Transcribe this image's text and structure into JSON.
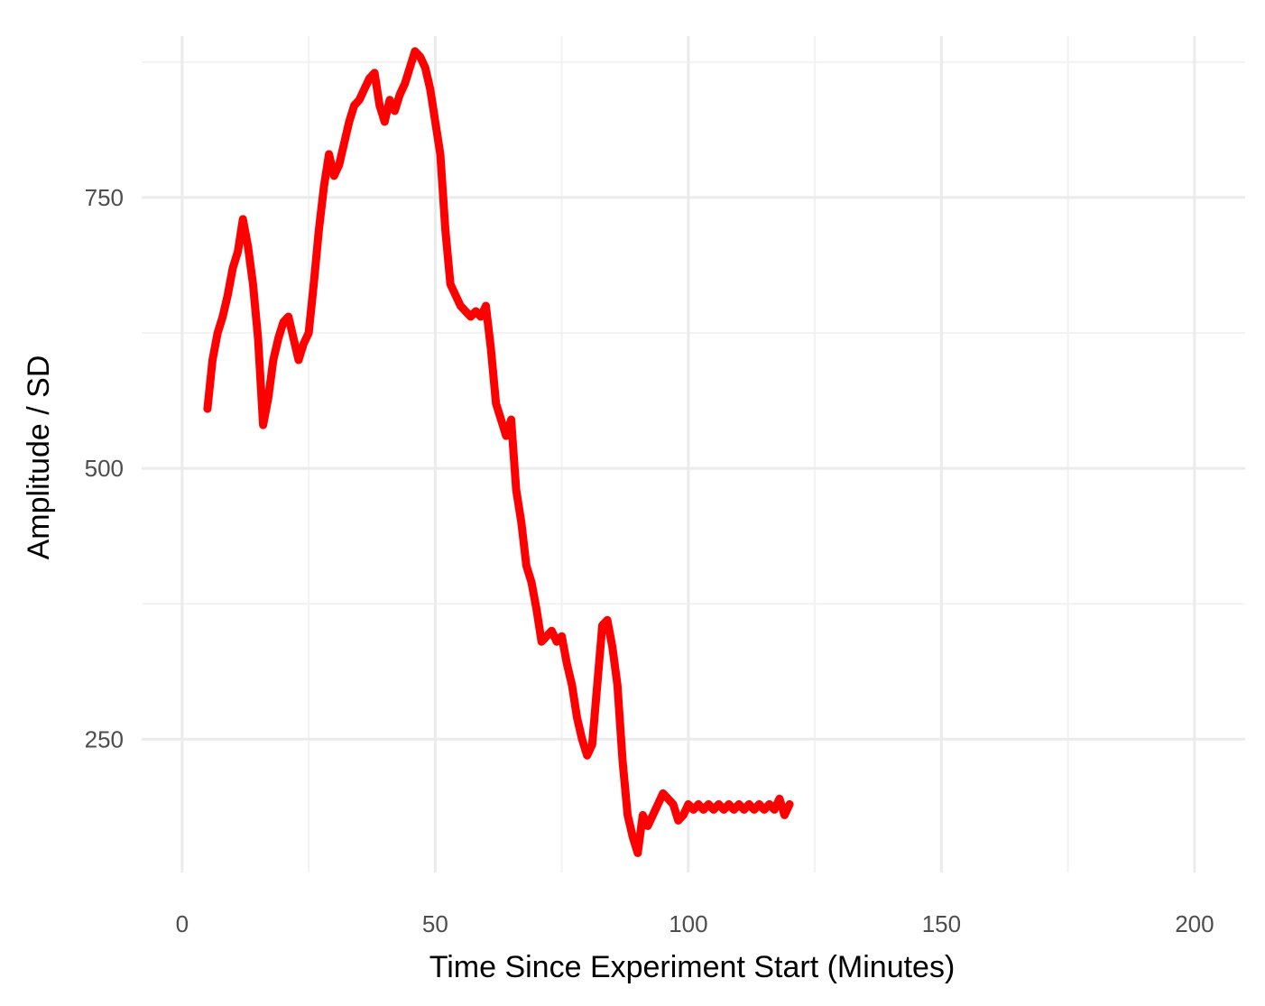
{
  "chart_data": {
    "type": "line",
    "title": "",
    "xlabel": "Time Since Experiment Start (Minutes)",
    "ylabel": "Amplitude / SD",
    "xlim": [
      -8,
      210
    ],
    "ylim": [
      127,
      899
    ],
    "x_ticks": [
      0,
      50,
      100,
      150,
      200
    ],
    "x_tick_labels": [
      "0",
      "50",
      "100",
      "150",
      "200"
    ],
    "y_ticks": [
      250,
      500,
      750
    ],
    "y_tick_labels": [
      "250",
      "500",
      "750"
    ],
    "grid": true,
    "legend": "none",
    "series": [
      {
        "color": "#ff0000",
        "x": [
          5,
          6,
          7,
          8,
          9,
          10,
          11,
          12,
          13,
          14,
          15,
          16,
          17,
          18,
          19,
          20,
          21,
          22,
          23,
          24,
          25,
          26,
          27,
          28,
          29,
          30,
          31,
          32,
          33,
          34,
          35,
          36,
          37,
          38,
          39,
          40,
          41,
          42,
          43,
          44,
          45,
          46,
          47,
          48,
          49,
          50,
          51,
          52,
          53,
          54,
          55,
          56,
          57,
          58,
          59,
          60,
          61,
          62,
          63,
          64,
          65,
          66,
          67,
          68,
          69,
          70,
          71,
          72,
          73,
          74,
          75,
          76,
          77,
          78,
          79,
          80,
          81,
          82,
          83,
          84,
          85,
          86,
          87,
          88,
          89,
          90,
          91,
          92,
          93,
          94,
          95,
          96,
          97,
          98,
          99,
          100,
          101,
          102,
          103,
          104,
          105,
          106,
          107,
          108,
          109,
          110,
          111,
          112,
          113,
          114,
          115,
          116,
          117,
          118,
          119,
          120
        ],
        "y": [
          555,
          600,
          625,
          640,
          660,
          685,
          700,
          730,
          705,
          670,
          620,
          540,
          565,
          600,
          620,
          635,
          640,
          620,
          600,
          615,
          625,
          670,
          720,
          760,
          790,
          770,
          780,
          800,
          820,
          835,
          840,
          850,
          860,
          865,
          835,
          820,
          840,
          830,
          845,
          855,
          870,
          885,
          880,
          870,
          850,
          820,
          790,
          720,
          670,
          660,
          650,
          645,
          640,
          645,
          640,
          650,
          610,
          560,
          545,
          530,
          545,
          480,
          450,
          410,
          395,
          370,
          340,
          345,
          350,
          340,
          345,
          320,
          300,
          270,
          250,
          235,
          245,
          300,
          355,
          360,
          335,
          300,
          230,
          180,
          160,
          145,
          180,
          170,
          180,
          190,
          200,
          195,
          190,
          175,
          180,
          190,
          185,
          190,
          185,
          190,
          185,
          190,
          185,
          190,
          185,
          190,
          185,
          190,
          185,
          190,
          185,
          190,
          185,
          195,
          180,
          190
        ]
      }
    ]
  }
}
